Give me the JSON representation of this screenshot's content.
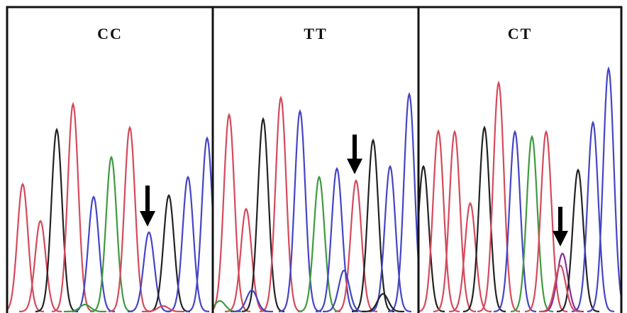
{
  "panels": [
    {
      "label": "CC"
    },
    {
      "label": "TT"
    },
    {
      "label": "CT"
    }
  ]
}
